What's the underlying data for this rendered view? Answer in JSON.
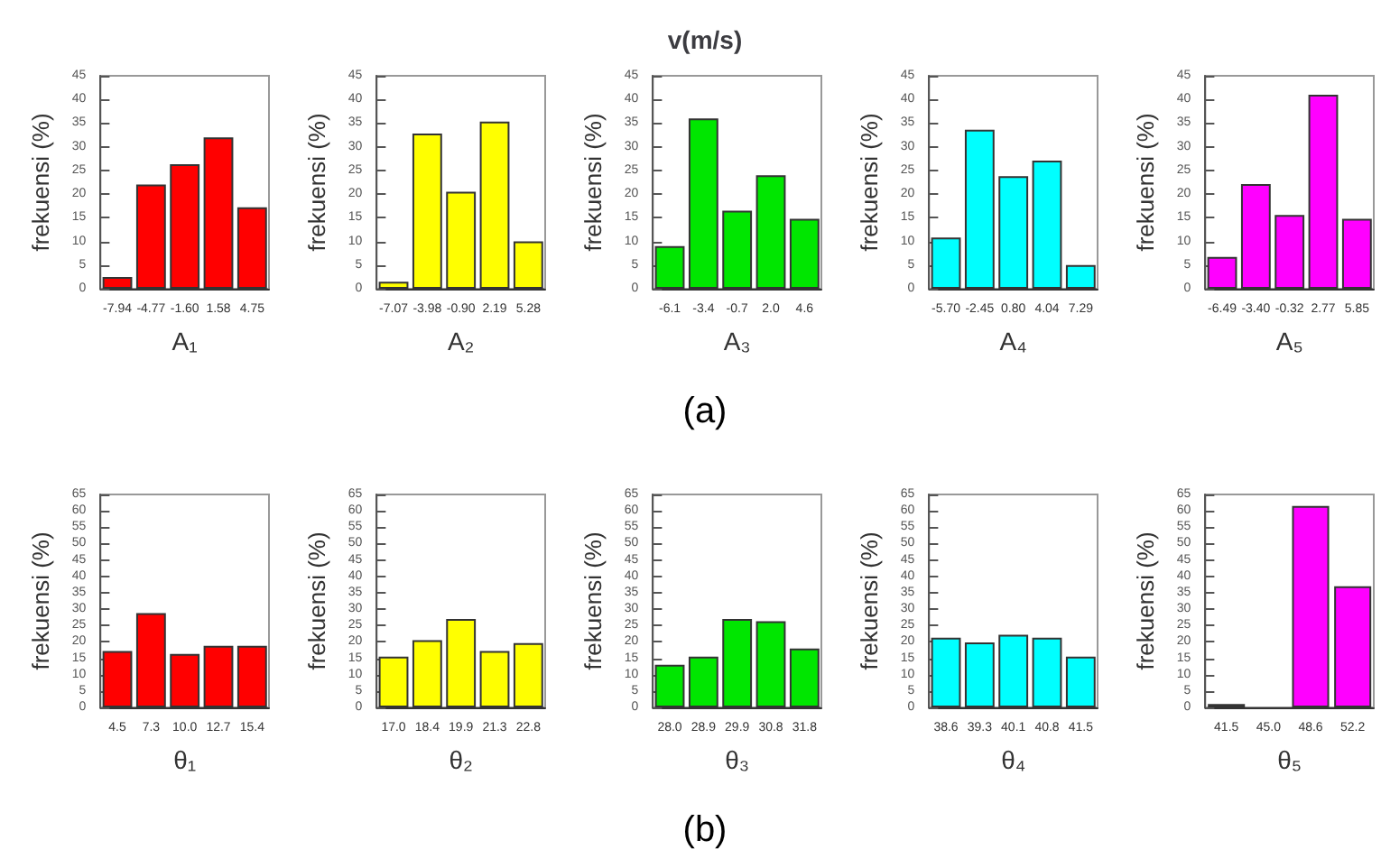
{
  "chart_data": [
    {
      "type": "bar",
      "xlabel": "A₁",
      "ylabel": "frekuensi (%)",
      "categories": [
        "-7.94",
        "-4.77",
        "-1.60",
        "1.58",
        "4.75"
      ],
      "values": [
        2.5,
        22,
        26.3,
        32,
        17.2
      ],
      "color": "#ff0000",
      "ylim": [
        0,
        45
      ],
      "yticks": [
        0,
        5,
        10,
        15,
        20,
        25,
        30,
        35,
        40,
        45
      ]
    },
    {
      "type": "bar",
      "xlabel": "A₂",
      "ylabel": "frekuensi (%)",
      "categories": [
        "-7.07",
        "-3.98",
        "-0.90",
        "2.19",
        "5.28"
      ],
      "values": [
        1.5,
        32.8,
        20.5,
        35.3,
        10
      ],
      "color": "#ffff00",
      "ylim": [
        0,
        45
      ],
      "yticks": [
        0,
        5,
        10,
        15,
        20,
        25,
        30,
        35,
        40,
        45
      ]
    },
    {
      "type": "bar",
      "title": "v(m/s)",
      "xlabel": "A₃",
      "ylabel": "frekuensi (%)",
      "categories": [
        "-6.1",
        "-3.4",
        "-0.7",
        "2.0",
        "4.6"
      ],
      "values": [
        9,
        36,
        16.5,
        24,
        14.8
      ],
      "color": "#00e600",
      "ylim": [
        0,
        45
      ],
      "yticks": [
        0,
        5,
        10,
        15,
        20,
        25,
        30,
        35,
        40,
        45
      ],
      "annotations": [
        "(a)"
      ]
    },
    {
      "type": "bar",
      "xlabel": "A₄",
      "ylabel": "frekuensi (%)",
      "categories": [
        "-5.70",
        "-2.45",
        "0.80",
        "4.04",
        "7.29"
      ],
      "values": [
        10.8,
        33.6,
        23.8,
        27.1,
        5
      ],
      "color": "#00ffff",
      "ylim": [
        0,
        45
      ],
      "yticks": [
        0,
        5,
        10,
        15,
        20,
        25,
        30,
        35,
        40,
        45
      ]
    },
    {
      "type": "bar",
      "xlabel": "A₅",
      "ylabel": "frekuensi (%)",
      "categories": [
        "-6.49",
        "-3.40",
        "-0.32",
        "2.77",
        "5.85"
      ],
      "values": [
        6.7,
        22.1,
        15.6,
        41,
        14.8
      ],
      "color": "#ff00ff",
      "ylim": [
        0,
        45
      ],
      "yticks": [
        0,
        5,
        10,
        15,
        20,
        25,
        30,
        35,
        40,
        45
      ]
    },
    {
      "type": "bar",
      "xlabel": "θ₁",
      "ylabel": "frekuensi (%)",
      "categories": [
        "4.5",
        "7.3",
        "10.0",
        "12.7",
        "15.4"
      ],
      "values": [
        17.2,
        28.8,
        16.3,
        18.8,
        18.8
      ],
      "color": "#ff0000",
      "ylim": [
        0,
        65
      ],
      "yticks": [
        0,
        5,
        10,
        15,
        20,
        25,
        30,
        35,
        40,
        45,
        50,
        55,
        60,
        65
      ]
    },
    {
      "type": "bar",
      "xlabel": "θ₂",
      "ylabel": "frekuensi (%)",
      "categories": [
        "17.0",
        "18.4",
        "19.9",
        "21.3",
        "22.8"
      ],
      "values": [
        15.5,
        20.5,
        27,
        17.2,
        19.6
      ],
      "color": "#ffff00",
      "ylim": [
        0,
        65
      ],
      "yticks": [
        0,
        5,
        10,
        15,
        20,
        25,
        30,
        35,
        40,
        45,
        50,
        55,
        60,
        65
      ]
    },
    {
      "type": "bar",
      "xlabel": "θ₃",
      "ylabel": "frekuensi (%)",
      "categories": [
        "28.0",
        "28.9",
        "29.9",
        "30.8",
        "31.8"
      ],
      "values": [
        13,
        15.5,
        27,
        26.3,
        18
      ],
      "color": "#00e600",
      "ylim": [
        0,
        65
      ],
      "yticks": [
        0,
        5,
        10,
        15,
        20,
        25,
        30,
        35,
        40,
        45,
        50,
        55,
        60,
        65
      ],
      "annotations": [
        "(b)"
      ]
    },
    {
      "type": "bar",
      "xlabel": "θ₄",
      "ylabel": "frekuensi (%)",
      "categories": [
        "38.6",
        "39.3",
        "40.1",
        "40.8",
        "41.5"
      ],
      "values": [
        21.3,
        19.8,
        22.2,
        21.3,
        15.5
      ],
      "color": "#00ffff",
      "ylim": [
        0,
        65
      ],
      "yticks": [
        0,
        5,
        10,
        15,
        20,
        25,
        30,
        35,
        40,
        45,
        50,
        55,
        60,
        65
      ]
    },
    {
      "type": "bar",
      "xlabel": "θ₅",
      "ylabel": "frekuensi (%)",
      "categories": [
        "41.5",
        "45.0",
        "48.6",
        "52.2"
      ],
      "values": [
        1,
        0,
        61.5,
        37
      ],
      "color": "#ff00ff",
      "ylim": [
        0,
        65
      ],
      "yticks": [
        0,
        5,
        10,
        15,
        20,
        25,
        30,
        35,
        40,
        45,
        50,
        55,
        60,
        65
      ]
    }
  ]
}
